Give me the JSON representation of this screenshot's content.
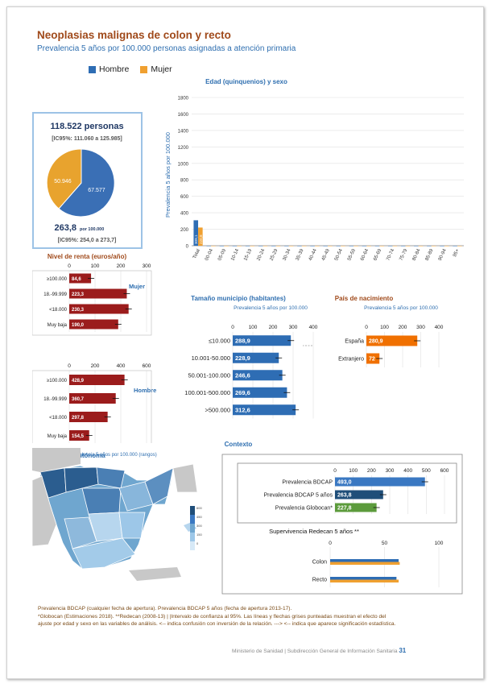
{
  "title": "Neoplasias malignas de colon y recto",
  "subtitle": "Prevalencia 5 años por 100.000 personas asignadas a atención primaria",
  "colors": {
    "hombre": "#2e6db4",
    "mujer": "#f0a030",
    "renta": "#9b1c1c",
    "municipio": "#2e6db4",
    "espana": "#f07000",
    "bdcap": "#3a78c2",
    "bdcap5": "#1f4e79",
    "globocan": "#5c9b3c"
  },
  "legend": {
    "hombre": "Hombre",
    "mujer": "Mujer"
  },
  "total_box": {
    "count": "118.522 personas",
    "ci_count": "[IC95%: 111.060 a 125.985]",
    "pie_mujer": "50.946",
    "pie_hombre": "67.577",
    "rate": "263,8",
    "rate_unit": "por 100.000",
    "ci_rate": "[IC95%: 254,0 a 273,7]"
  },
  "chart_data": [
    {
      "type": "bar",
      "title": "Edad (quinquenios) y sexo",
      "ylabel": "Prevalencia 5 años por 100.000",
      "ylim": [
        0,
        1800
      ],
      "yticks": [
        0,
        200,
        400,
        600,
        800,
        1000,
        1200,
        1400,
        1600,
        1800
      ],
      "categories": [
        "Total",
        "00-04",
        "05-09",
        "10-14",
        "15-19",
        "20-24",
        "25-29",
        "30-34",
        "35-39",
        "40-44",
        "45-49",
        "50-54",
        "55-59",
        "60-64",
        "65-69",
        "70-74",
        "75-79",
        "80-84",
        "85-89",
        "90-94",
        "95+"
      ],
      "series": [
        {
          "name": "Hombre",
          "values": [
            309.1,
            0,
            0,
            0,
            0,
            0,
            0,
            0,
            0,
            0,
            0,
            0,
            0,
            0,
            0,
            0,
            0,
            0,
            0,
            0,
            0
          ],
          "labels": [
            "309,1",
            "",
            "",
            "",
            "",
            "",
            "",
            "",
            "",
            "",
            "",
            "",
            "",
            "",
            "",
            "",
            "",
            "",
            "",
            "",
            ""
          ]
        },
        {
          "name": "Mujer",
          "values": [
            220.8,
            0,
            0,
            0,
            0,
            0,
            0,
            0,
            0,
            0,
            0,
            0,
            0,
            0,
            0,
            0,
            0,
            0,
            0,
            0,
            0
          ],
          "labels": [
            "220,8",
            "",
            "",
            "",
            "",
            "",
            "",
            "",
            "",
            "",
            "",
            "",
            "",
            "",
            "",
            "",
            "",
            "",
            "",
            "",
            ""
          ]
        }
      ]
    },
    {
      "type": "bar",
      "title": "Nivel de renta (euros/año)",
      "group": "Mujer",
      "xlim": [
        0,
        300
      ],
      "xticks": [
        0,
        100,
        200,
        300
      ],
      "categories": [
        "≥100.000",
        "18.-99.999",
        "<18.000",
        "Muy baja"
      ],
      "values": [
        84.6,
        223.3,
        230.3,
        190.0
      ],
      "labels": [
        "84,6",
        "223,3",
        "230,3",
        "190,0"
      ]
    },
    {
      "type": "bar",
      "group": "Hombre",
      "xlim": [
        0,
        600
      ],
      "xticks": [
        0,
        200,
        400,
        600
      ],
      "categories": [
        "≥100.000",
        "18.-99.999",
        "<18.000",
        "Muy baja"
      ],
      "values": [
        428.9,
        360.7,
        297.8,
        154.5
      ],
      "labels": [
        "428,9",
        "360,7",
        "297,8",
        "154,5"
      ]
    },
    {
      "type": "bar",
      "title": "Tamaño municipio (habitantes)",
      "subtitle": "Prevalencia 5 años por 100.000",
      "xlim": [
        0,
        400
      ],
      "xticks": [
        0,
        100,
        200,
        300,
        400
      ],
      "categories": [
        "≤10.000",
        "10.001-50.000",
        "50.001-100.000",
        "100.001-500.000",
        ">500.000"
      ],
      "values": [
        288.9,
        228.9,
        246.6,
        269.6,
        312.6
      ],
      "labels": [
        "288,9",
        "228,9",
        "246,6",
        "269,6",
        "312,6"
      ]
    },
    {
      "type": "bar",
      "title": "País de nacimiento",
      "subtitle": "Prevalencia 5 años por 100.000",
      "xlim": [
        0,
        400
      ],
      "xticks": [
        0,
        100,
        200,
        300,
        400
      ],
      "categories": [
        "España",
        "Extranjero"
      ],
      "values": [
        280.9,
        72.0
      ],
      "labels": [
        "280,9",
        "72"
      ]
    },
    {
      "type": "bar",
      "title": "Contexto",
      "xlim": [
        0,
        600
      ],
      "xticks": [
        0,
        100,
        200,
        300,
        400,
        500,
        600
      ],
      "categories": [
        "Prevalencia BDCAP",
        "Prevalencia BDCAP 5 años",
        "Prevalencia Globocan*"
      ],
      "values": [
        493.0,
        263.8,
        227.8
      ],
      "labels": [
        "493,0",
        "263,8",
        "227,8"
      ]
    },
    {
      "type": "bar",
      "title": "Supervivencia Redecan 5 años **",
      "xlim": [
        0,
        100
      ],
      "xticks": [
        0,
        50,
        100
      ],
      "categories": [
        "Colon",
        "Recto"
      ],
      "series": [
        {
          "name": "Hombre",
          "values": [
            63,
            61
          ]
        },
        {
          "name": "Mujer",
          "values": [
            64,
            63
          ]
        }
      ]
    }
  ],
  "map": {
    "title": "Comunidad Autónoma",
    "subtitle": "Prevalencia 5 años por 100.000 (rangos)",
    "scale": [
      "600",
      "450",
      "300",
      "150",
      "0"
    ]
  },
  "footer": {
    "line1": "Prevalencia BDCAP (cualquier fecha de apertura). Prevalencia BDCAP 5 años (fecha de apertura 2013-17).",
    "line2": "*Globocan (Estimaciones 2018). **Redecan (2008-13) | |Intervalo de confianza al 95%. Las líneas y flechas grises punteadas muestran el efecto del",
    "line3": "ajuste por edad y sexo en las variables de análisis. <-- indica confusión con inversión de la relación. ---> <-- indica que aparece significación estadística.",
    "ministry": "Ministerio de Sanidad | Subdirección General de Información Sanitaria",
    "page": "31"
  }
}
